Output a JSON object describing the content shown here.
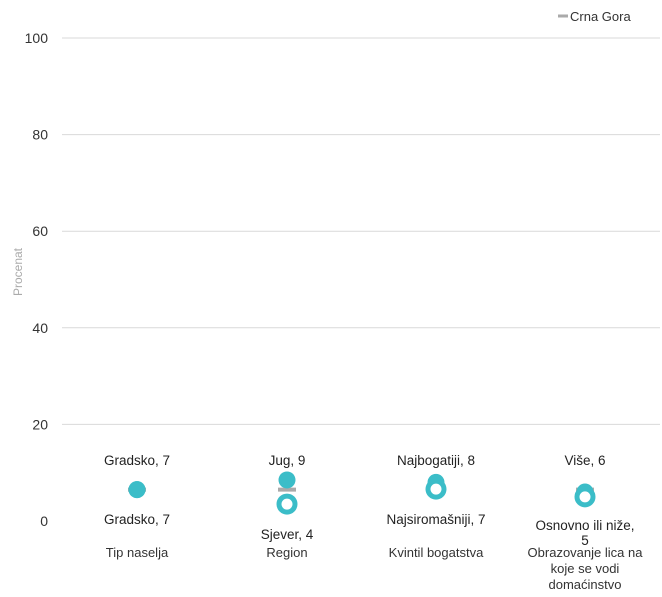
{
  "chart_data": {
    "type": "scatter",
    "ylabel": "Procenat",
    "ylim": [
      0,
      100
    ],
    "yticks": [
      0,
      20,
      40,
      60,
      80,
      100
    ],
    "grid": true,
    "legend": {
      "position": "top-right",
      "entries": [
        {
          "label": "Crna Gora",
          "color": "#aaaaaa"
        }
      ]
    },
    "reference": {
      "name": "Crna Gora",
      "value": 6.5
    },
    "colors": {
      "point": "#3bbdc8",
      "reference": "#aaaaaa",
      "grid": "#d9d9d9"
    },
    "groups": [
      {
        "category": [
          "Tip naselja"
        ],
        "points": [
          {
            "label": "Gradsko, 7",
            "value": 6.5,
            "style": "filled"
          },
          {
            "label": "Gradsko, 7",
            "value": 6.5,
            "style": "filled"
          }
        ]
      },
      {
        "category": [
          "Region"
        ],
        "points": [
          {
            "label": "Jug, 9",
            "value": 8.5,
            "style": "filled"
          },
          {
            "label": "Sjever, 4",
            "value": 3.5,
            "style": "hollow"
          }
        ]
      },
      {
        "category": [
          "Kvintil bogatstva"
        ],
        "points": [
          {
            "label": "Najbogatiji, 8",
            "value": 8.0,
            "style": "filled"
          },
          {
            "label": "Najsiromašniji, 7",
            "value": 6.6,
            "style": "hollow"
          }
        ]
      },
      {
        "category": [
          "Obrazovanje lica na",
          "koje se vodi",
          "domaćinstvo"
        ],
        "points": [
          {
            "label": "Više, 6",
            "value": 6.0,
            "style": "filled"
          },
          {
            "label": [
              "Osnovno ili niže,",
              "5"
            ],
            "value": 5.0,
            "style": "hollow"
          }
        ]
      }
    ]
  }
}
